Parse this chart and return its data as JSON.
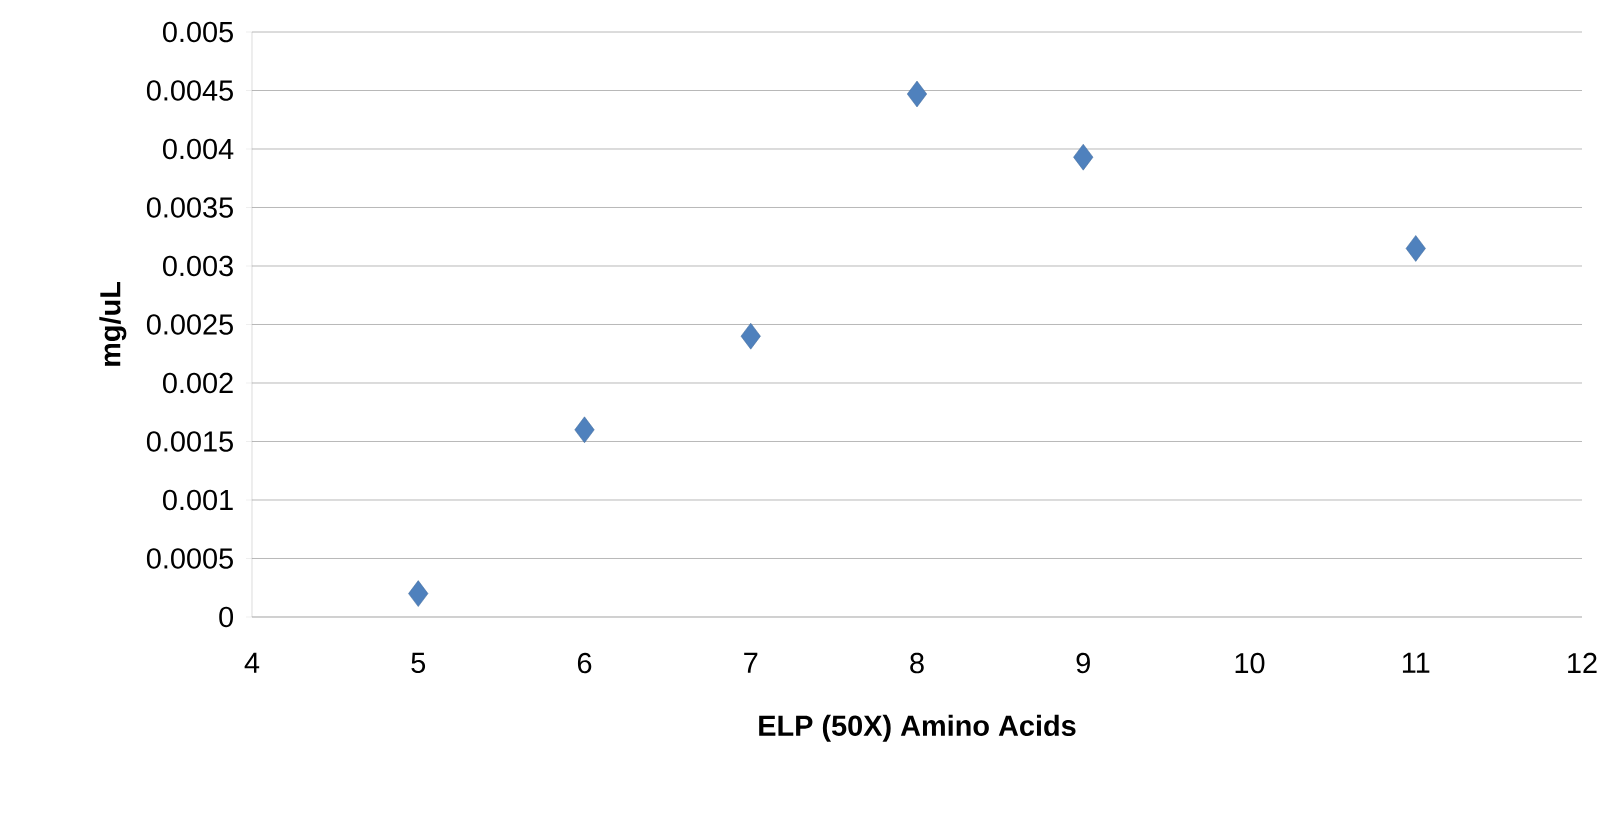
{
  "chart_data": {
    "type": "scatter",
    "xlabel": "ELP (50X) Amino Acids",
    "ylabel": "mg/uL",
    "x": [
      5,
      6,
      7,
      8,
      9,
      11
    ],
    "values": [
      0.0002,
      0.0016,
      0.0024,
      0.00447,
      0.00393,
      0.00315
    ],
    "color": "#4f81bd",
    "marker": "diamond",
    "xlim": [
      4,
      12
    ],
    "xticks": [
      4,
      5,
      6,
      7,
      8,
      9,
      10,
      11,
      12
    ],
    "ylim": [
      0,
      0.005
    ],
    "yticks": [
      {
        "value": 0,
        "label": "0"
      },
      {
        "value": 0.0005,
        "label": "0.0005"
      },
      {
        "value": 0.001,
        "label": "0.001"
      },
      {
        "value": 0.0015,
        "label": "0.0015"
      },
      {
        "value": 0.002,
        "label": "0.002"
      },
      {
        "value": 0.0025,
        "label": "0.0025"
      },
      {
        "value": 0.003,
        "label": "0.003"
      },
      {
        "value": 0.0035,
        "label": "0.0035"
      },
      {
        "value": 0.004,
        "label": "0.004"
      },
      {
        "value": 0.0045,
        "label": "0.0045"
      },
      {
        "value": 0.005,
        "label": "0.005"
      }
    ],
    "grid": "y"
  }
}
